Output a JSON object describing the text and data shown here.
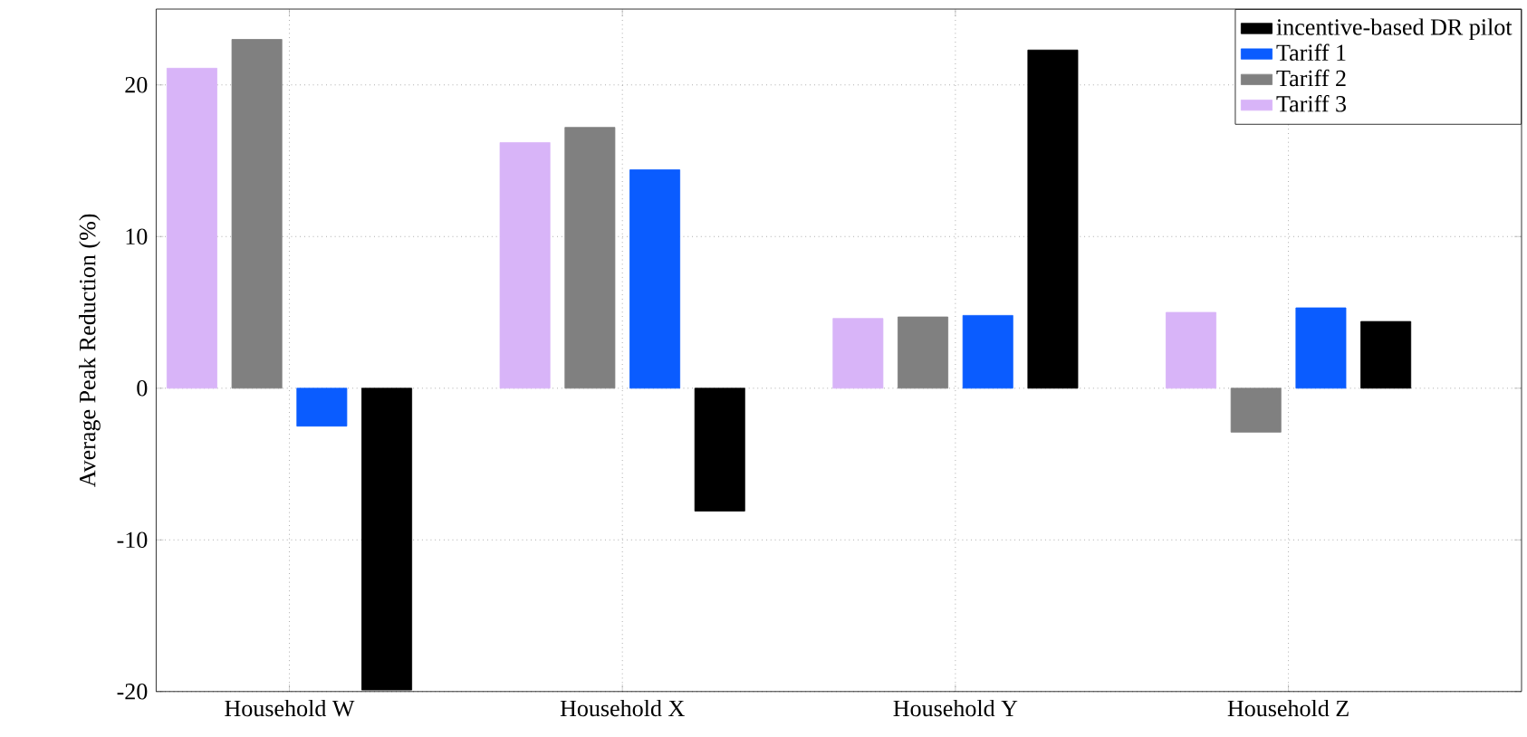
{
  "chart_data": {
    "type": "bar",
    "ylabel": "Average Peak Reduction (%)",
    "categories": [
      "Household W",
      "Household X",
      "Household Y",
      "Household Z"
    ],
    "series": [
      {
        "name": "incentive-based DR pilot",
        "color": "#000000",
        "values": [
          -19.9,
          -8.1,
          22.3,
          4.4
        ]
      },
      {
        "name": "Tariff 1",
        "color": "#0a5cff",
        "values": [
          -2.5,
          14.4,
          4.8,
          5.3
        ]
      },
      {
        "name": "Tariff 2",
        "color": "#808080",
        "values": [
          23.0,
          17.2,
          4.7,
          -2.9
        ]
      },
      {
        "name": "Tariff 3",
        "color": "#d8b4f8",
        "values": [
          21.1,
          16.2,
          4.6,
          5.0
        ]
      }
    ],
    "ylim": [
      -20,
      25
    ],
    "yticks": [
      -20,
      -10,
      0,
      10,
      20
    ],
    "grid": true,
    "legend": "top right"
  }
}
